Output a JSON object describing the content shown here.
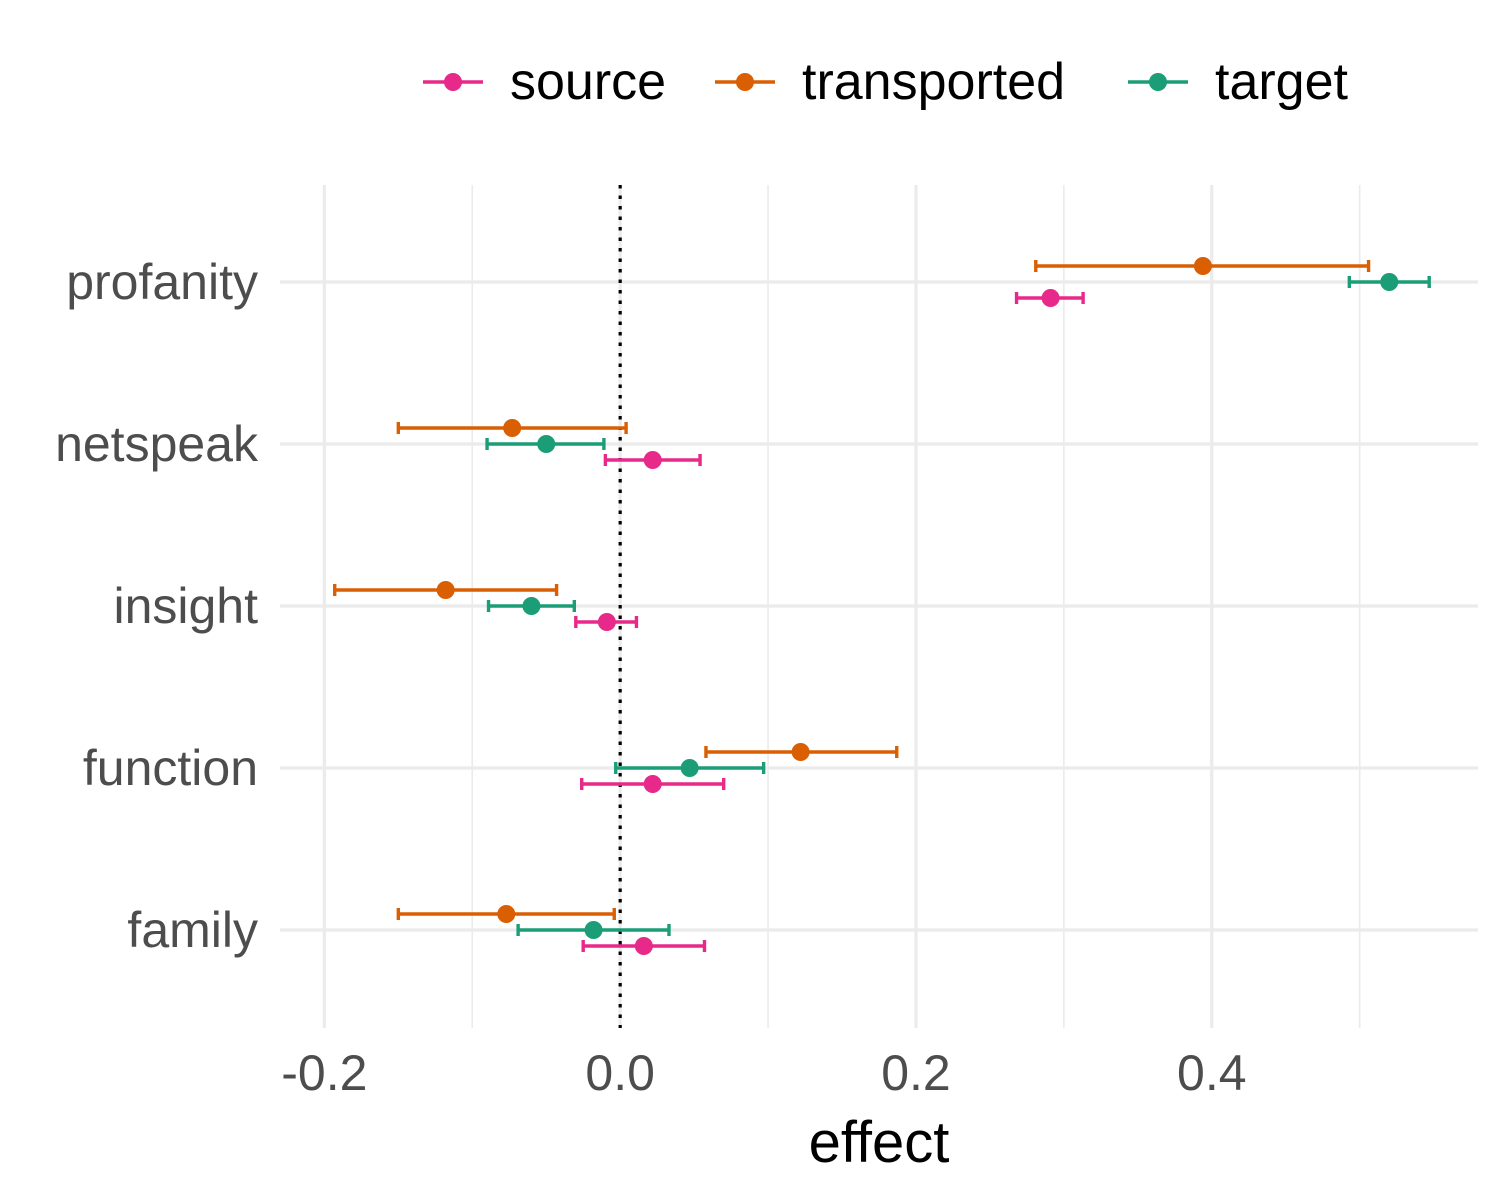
{
  "chart_data": {
    "type": "scatter",
    "subtype": "point-range (dot with error bars), horizontal",
    "xlabel": "effect",
    "ylabel": "",
    "xlim": [
      -0.23,
      0.58
    ],
    "x_ticks": [
      -0.2,
      0.0,
      0.2,
      0.4
    ],
    "x_tick_labels": [
      "-0.2",
      "0.0",
      "0.2",
      "0.4"
    ],
    "reference_line": {
      "x": 0,
      "style": "dotted",
      "color": "#000000"
    },
    "grid": true,
    "legend_position": "top",
    "categories": [
      "profanity",
      "netspeak",
      "insight",
      "function",
      "family"
    ],
    "series": [
      {
        "name": "source",
        "color": "#E7298A",
        "values": [
          0.291,
          0.022,
          -0.009,
          0.022,
          0.016
        ],
        "lower": [
          0.268,
          -0.01,
          -0.03,
          -0.026,
          -0.025
        ],
        "upper": [
          0.313,
          0.054,
          0.011,
          0.07,
          0.057
        ]
      },
      {
        "name": "transported",
        "color": "#D95F02",
        "values": [
          0.394,
          -0.073,
          -0.118,
          0.122,
          -0.077
        ],
        "lower": [
          0.281,
          -0.15,
          -0.193,
          0.058,
          -0.15
        ],
        "upper": [
          0.506,
          0.004,
          -0.043,
          0.187,
          -0.004
        ]
      },
      {
        "name": "target",
        "color": "#1B9E77",
        "values": [
          0.52,
          -0.05,
          -0.06,
          0.047,
          -0.018
        ],
        "lower": [
          0.493,
          -0.09,
          -0.089,
          -0.003,
          -0.069
        ],
        "upper": [
          0.547,
          -0.011,
          -0.031,
          0.097,
          0.033
        ]
      }
    ]
  }
}
